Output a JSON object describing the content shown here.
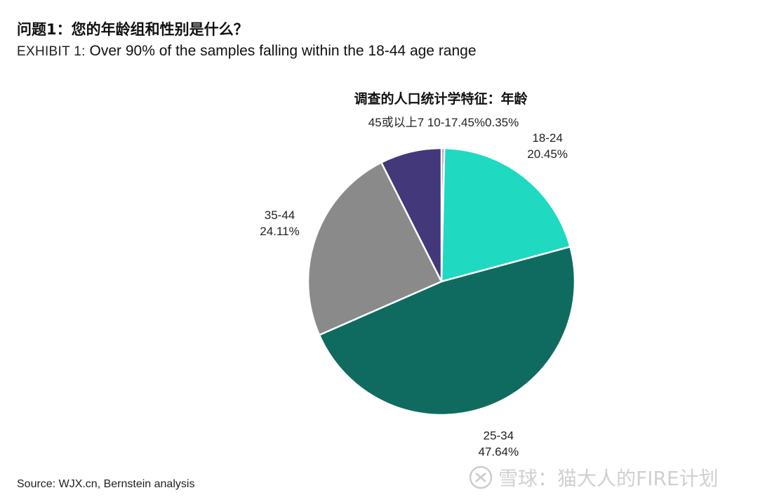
{
  "header": {
    "question": "问题1：您的年龄组和性别是什么？",
    "exhibit_prefix": "EXHIBIT 1:",
    "exhibit_title": "Over 90% of the samples falling within the 18-44 age range"
  },
  "chart_data": {
    "type": "pie",
    "title": "调查的人口统计学特征：年龄",
    "slices": [
      {
        "label": "10-17",
        "value": 0.35,
        "text": "0.35%",
        "color": "#8a8a8a"
      },
      {
        "label": "18-24",
        "value": 20.45,
        "text": "20.45%",
        "color": "#1fd9c1"
      },
      {
        "label": "25-34",
        "value": 47.64,
        "text": "47.64%",
        "color": "#0f6b60"
      },
      {
        "label": "35-44",
        "value": 24.11,
        "text": "24.11%",
        "color": "#8a8a8a"
      },
      {
        "label": "45或以上",
        "value": 7.45,
        "text": "7.45%",
        "color": "#43387a"
      }
    ],
    "top_label": "45或以上7 10-17.45%0.35%",
    "start": "12 o'clock",
    "direction": "clockwise"
  },
  "footer": {
    "source": "Source: WJX.cn, Bernstein analysis",
    "watermark": "雪球：猫大人的FIRE计划"
  }
}
